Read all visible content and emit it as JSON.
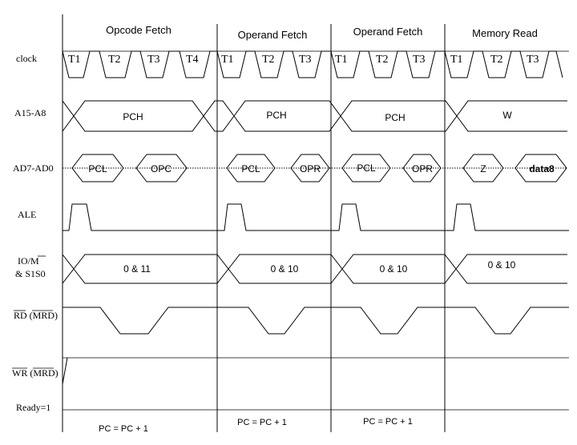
{
  "cycles": [
    "Opcode Fetch",
    "Operand Fetch",
    "Operand Fetch",
    "Memory Read"
  ],
  "signals": {
    "clock": "clock",
    "addr_high": "A15-A8",
    "addr_low": "AD7-AD0",
    "ale": "ALE",
    "io_m_line1": "IO/M",
    "io_m_line2": "& S1S0",
    "rd": "RD (MRD)",
    "wr": "WR (MRD)",
    "ready": "Ready=1"
  },
  "t_states": [
    [
      "T1",
      "T2",
      "T3",
      "T4"
    ],
    [
      "T1",
      "T2",
      "T3"
    ],
    [
      "T1",
      "T2",
      "T3"
    ],
    [
      "T1",
      "T2",
      "T3"
    ]
  ],
  "a15_a8": [
    "PCH",
    "PCH",
    "PCH",
    "W"
  ],
  "ad7_ad0": [
    [
      "PCL",
      "OPC"
    ],
    [
      "PCL",
      "OPR"
    ],
    [
      "PCL",
      "OPR"
    ],
    [
      "Z",
      "data8"
    ]
  ],
  "io_m_status": [
    "0 & 11",
    "0 & 10",
    "0 & 10",
    "0 & 10"
  ],
  "pc_updates": [
    "PC = PC + 1",
    "PC = PC + 1",
    "PC = PC + 1"
  ]
}
